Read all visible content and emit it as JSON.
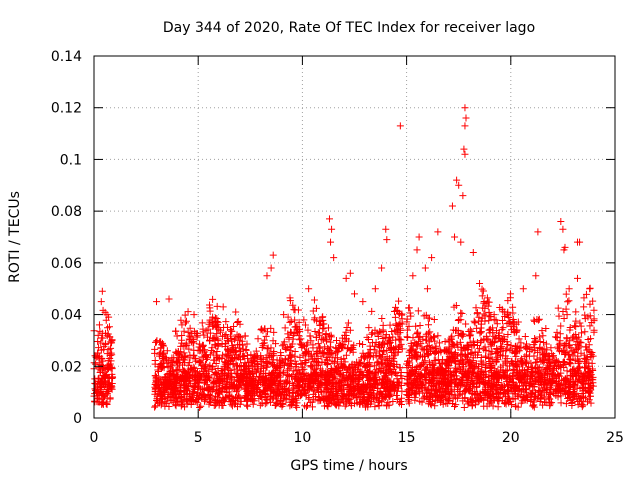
{
  "chart_data": {
    "type": "scatter",
    "title": "Day 344 of 2020, Rate Of TEC Index for receiver lago",
    "xlabel": "GPS time / hours",
    "ylabel": "ROTI / TECUs",
    "xlim": [
      0,
      25
    ],
    "ylim": [
      0,
      0.14
    ],
    "xticks": [
      0,
      5,
      10,
      15,
      20,
      25
    ],
    "yticks": [
      0,
      0.02,
      0.04,
      0.06,
      0.08,
      0.1,
      0.12,
      0.14
    ],
    "grid": true,
    "marker": "+",
    "color": "#ff0000",
    "series": [
      {
        "name": "ROTI",
        "segments": [
          {
            "start": 0.0,
            "end": 0.9,
            "base": 0.012,
            "spread": 0.02
          },
          {
            "start": 2.9,
            "end": 14.8,
            "base": 0.012,
            "spread": 0.022
          },
          {
            "start": 15.0,
            "end": 24.0,
            "base": 0.013,
            "spread": 0.025
          }
        ],
        "outliers": [
          [
            0.4,
            0.049
          ],
          [
            0.35,
            0.045
          ],
          [
            0.7,
            0.039
          ],
          [
            3.0,
            0.045
          ],
          [
            3.6,
            0.046
          ],
          [
            4.8,
            0.04
          ],
          [
            6.2,
            0.043
          ],
          [
            6.8,
            0.041
          ],
          [
            8.3,
            0.055
          ],
          [
            8.6,
            0.063
          ],
          [
            8.5,
            0.058
          ],
          [
            9.1,
            0.04
          ],
          [
            10.3,
            0.05
          ],
          [
            11.3,
            0.077
          ],
          [
            11.4,
            0.073
          ],
          [
            11.35,
            0.068
          ],
          [
            11.5,
            0.062
          ],
          [
            12.1,
            0.054
          ],
          [
            12.3,
            0.056
          ],
          [
            12.9,
            0.045
          ],
          [
            13.5,
            0.05
          ],
          [
            13.8,
            0.058
          ],
          [
            14.0,
            0.073
          ],
          [
            14.05,
            0.069
          ],
          [
            14.7,
            0.113
          ],
          [
            15.5,
            0.065
          ],
          [
            15.6,
            0.07
          ],
          [
            15.9,
            0.058
          ],
          [
            16.2,
            0.062
          ],
          [
            16.5,
            0.072
          ],
          [
            17.2,
            0.082
          ],
          [
            17.3,
            0.07
          ],
          [
            17.4,
            0.092
          ],
          [
            17.5,
            0.09
          ],
          [
            17.6,
            0.068
          ],
          [
            17.7,
            0.086
          ],
          [
            17.75,
            0.104
          ],
          [
            17.8,
            0.102
          ],
          [
            17.8,
            0.12
          ],
          [
            17.85,
            0.116
          ],
          [
            17.8,
            0.113
          ],
          [
            18.2,
            0.064
          ],
          [
            18.5,
            0.052
          ],
          [
            19.2,
            0.04
          ],
          [
            20.6,
            0.05
          ],
          [
            21.3,
            0.072
          ],
          [
            21.2,
            0.055
          ],
          [
            22.4,
            0.076
          ],
          [
            22.5,
            0.073
          ],
          [
            22.55,
            0.065
          ],
          [
            22.6,
            0.066
          ],
          [
            23.2,
            0.068
          ],
          [
            23.3,
            0.068
          ],
          [
            23.2,
            0.054
          ],
          [
            23.8,
            0.044
          ],
          [
            22.8,
            0.05
          ],
          [
            16.0,
            0.05
          ],
          [
            15.3,
            0.055
          ],
          [
            12.5,
            0.048
          ],
          [
            9.4,
            0.037
          ]
        ]
      }
    ]
  }
}
